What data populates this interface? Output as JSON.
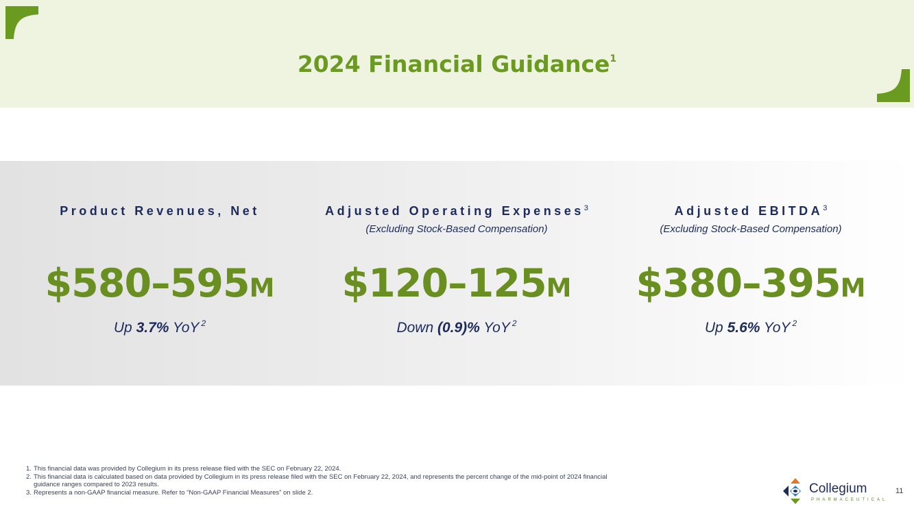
{
  "header": {
    "title": "2024 Financial Guidance",
    "title_sup": "1",
    "accent_color": "#6a9a1f",
    "band_color": "#eef4df"
  },
  "metrics": [
    {
      "label": "Product Revenues, Net",
      "label_sup": "",
      "subtitle": "",
      "value": "$580–595",
      "unit": "M",
      "change_prefix": "Up ",
      "change_value": "3.7%",
      "change_suffix": " YoY",
      "change_sup": "2"
    },
    {
      "label": "Adjusted Operating Expenses",
      "label_sup": "3",
      "subtitle": "(Excluding Stock-Based Compensation)",
      "value": "$120–125",
      "unit": "M",
      "change_prefix": "Down ",
      "change_value": "(0.9)%",
      "change_suffix": " YoY",
      "change_sup": "2"
    },
    {
      "label": "Adjusted EBITDA",
      "label_sup": "3",
      "subtitle": "(Excluding Stock-Based Compensation)",
      "value": "$380–395",
      "unit": "M",
      "change_prefix": "Up ",
      "change_value": "5.6%",
      "change_suffix": " YoY",
      "change_sup": "2"
    }
  ],
  "footnotes": [
    {
      "num": "1.",
      "text": "This financial data was provided by Collegium in its press release filed with the SEC on February 22, 2024."
    },
    {
      "num": "2.",
      "text": "This financial data is calculated based on data provided by Collegium in its press release filed with the SEC on February 22, 2024, and represents the percent change of the mid-point of 2024 financial guidance ranges compared to 2023 results."
    },
    {
      "num": "3.",
      "text": "Represents a non-GAAP financial measure. Refer to “Non-GAAP Financial Measures” on slide 2."
    }
  ],
  "logo": {
    "name": "Collegium",
    "subtitle": "PHARMACEUTICAL"
  },
  "page_number": "11"
}
